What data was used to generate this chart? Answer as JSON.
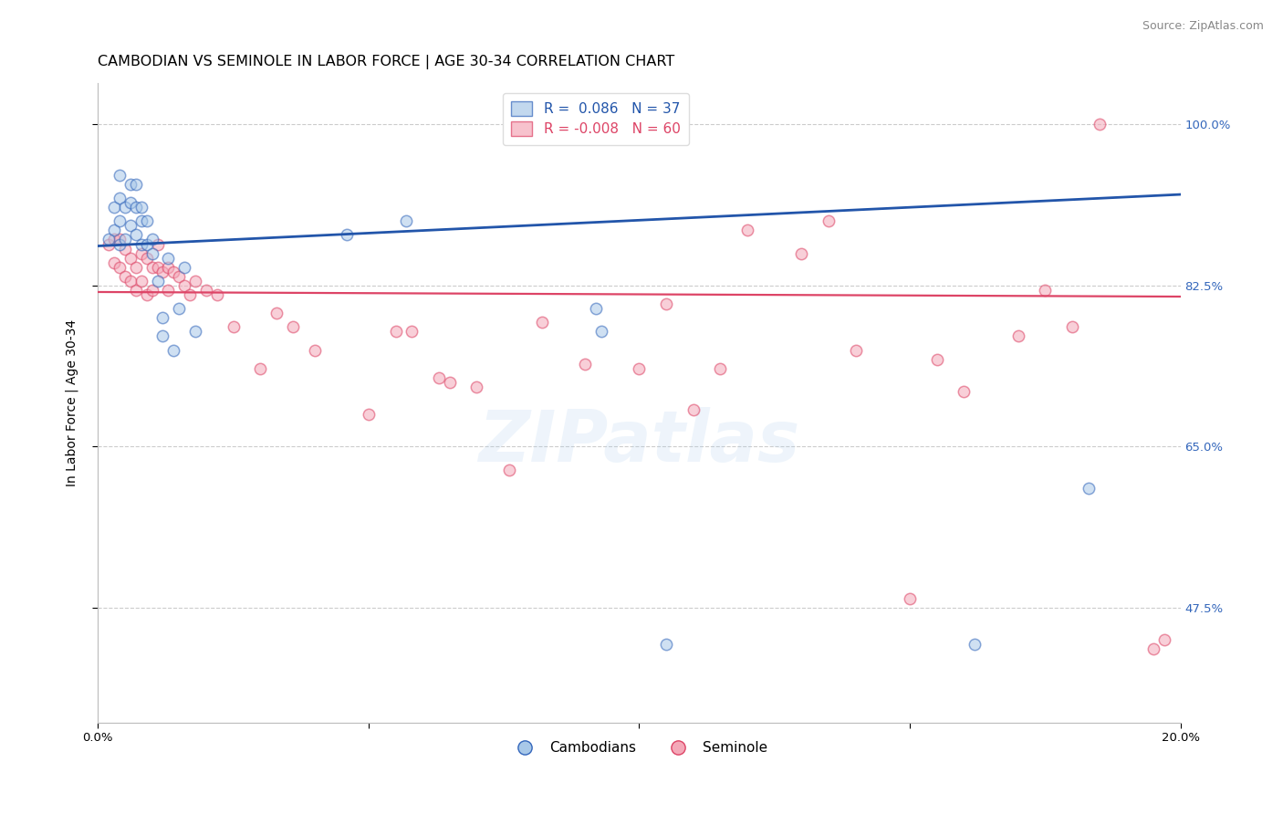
{
  "title": "CAMBODIAN VS SEMINOLE IN LABOR FORCE | AGE 30-34 CORRELATION CHART",
  "source": "Source: ZipAtlas.com",
  "ylabel": "In Labor Force | Age 30-34",
  "xlim": [
    0.0,
    0.2
  ],
  "ylim": [
    0.35,
    1.045
  ],
  "xticks": [
    0.0,
    0.05,
    0.1,
    0.15,
    0.2
  ],
  "xticklabels": [
    "0.0%",
    "",
    "",
    "",
    "20.0%"
  ],
  "yticks": [
    0.475,
    0.65,
    0.825,
    1.0
  ],
  "yticklabels": [
    "47.5%",
    "65.0%",
    "82.5%",
    "100.0%"
  ],
  "legend_blue_r": "R =  0.086",
  "legend_blue_n": "N = 37",
  "legend_pink_r": "R = -0.008",
  "legend_pink_n": "N = 60",
  "blue_face": "#A8C8E8",
  "pink_face": "#F4A8B8",
  "blue_edge": "#3366BB",
  "pink_edge": "#DD4466",
  "blue_line": "#2255AA",
  "pink_line": "#DD4466",
  "watermark": "ZIPatlas",
  "blue_x": [
    0.002,
    0.003,
    0.003,
    0.004,
    0.004,
    0.004,
    0.004,
    0.005,
    0.005,
    0.006,
    0.006,
    0.006,
    0.007,
    0.007,
    0.007,
    0.008,
    0.008,
    0.008,
    0.009,
    0.009,
    0.01,
    0.01,
    0.011,
    0.012,
    0.012,
    0.013,
    0.014,
    0.015,
    0.016,
    0.018,
    0.046,
    0.057,
    0.092,
    0.093,
    0.105,
    0.162,
    0.183
  ],
  "blue_y": [
    0.875,
    0.91,
    0.885,
    0.945,
    0.92,
    0.895,
    0.87,
    0.91,
    0.875,
    0.935,
    0.915,
    0.89,
    0.935,
    0.91,
    0.88,
    0.91,
    0.895,
    0.87,
    0.895,
    0.87,
    0.875,
    0.86,
    0.83,
    0.79,
    0.77,
    0.855,
    0.755,
    0.8,
    0.845,
    0.775,
    0.88,
    0.895,
    0.8,
    0.775,
    0.435,
    0.435,
    0.605
  ],
  "pink_x": [
    0.002,
    0.003,
    0.003,
    0.004,
    0.004,
    0.005,
    0.005,
    0.006,
    0.006,
    0.007,
    0.007,
    0.008,
    0.008,
    0.009,
    0.009,
    0.01,
    0.01,
    0.011,
    0.011,
    0.012,
    0.013,
    0.013,
    0.014,
    0.015,
    0.016,
    0.017,
    0.018,
    0.02,
    0.022,
    0.025,
    0.03,
    0.033,
    0.036,
    0.04,
    0.05,
    0.055,
    0.058,
    0.063,
    0.065,
    0.07,
    0.076,
    0.082,
    0.09,
    0.1,
    0.105,
    0.11,
    0.115,
    0.12,
    0.13,
    0.135,
    0.14,
    0.15,
    0.155,
    0.16,
    0.17,
    0.175,
    0.18,
    0.185,
    0.195,
    0.197
  ],
  "pink_y": [
    0.87,
    0.875,
    0.85,
    0.875,
    0.845,
    0.865,
    0.835,
    0.855,
    0.83,
    0.845,
    0.82,
    0.86,
    0.83,
    0.855,
    0.815,
    0.845,
    0.82,
    0.87,
    0.845,
    0.84,
    0.845,
    0.82,
    0.84,
    0.835,
    0.825,
    0.815,
    0.83,
    0.82,
    0.815,
    0.78,
    0.735,
    0.795,
    0.78,
    0.755,
    0.685,
    0.775,
    0.775,
    0.725,
    0.72,
    0.715,
    0.625,
    0.785,
    0.74,
    0.735,
    0.805,
    0.69,
    0.735,
    0.885,
    0.86,
    0.895,
    0.755,
    0.485,
    0.745,
    0.71,
    0.77,
    0.82,
    0.78,
    1.0,
    0.43,
    0.44
  ],
  "blue_trend_x0": 0.0,
  "blue_trend_x1": 0.2,
  "blue_trend_y0": 0.868,
  "blue_trend_y1": 0.924,
  "pink_trend_y0": 0.818,
  "pink_trend_y1": 0.813,
  "marker_size": 80,
  "marker_lw": 1.1,
  "grid_color": "#CCCCCC",
  "grid_ls": "--",
  "bg_color": "#FFFFFF",
  "title_fontsize": 11.5,
  "ylabel_fontsize": 10,
  "tick_fontsize": 9.5,
  "legend_fontsize": 11,
  "source_fontsize": 9
}
